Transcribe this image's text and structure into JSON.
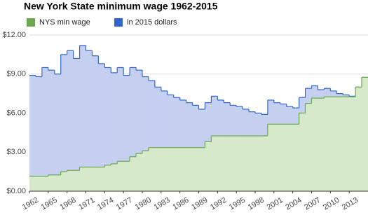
{
  "chart_data": {
    "type": "step-area",
    "title": "New York State minimum wage 1962-2015",
    "x": [
      1962,
      1963,
      1964,
      1965,
      1966,
      1967,
      1968,
      1969,
      1970,
      1971,
      1972,
      1973,
      1974,
      1975,
      1976,
      1977,
      1978,
      1979,
      1980,
      1981,
      1982,
      1983,
      1984,
      1985,
      1986,
      1987,
      1988,
      1989,
      1990,
      1991,
      1992,
      1993,
      1994,
      1995,
      1996,
      1997,
      1998,
      1999,
      2000,
      2001,
      2002,
      2003,
      2004,
      2005,
      2006,
      2007,
      2008,
      2009,
      2010,
      2011,
      2012,
      2013,
      2014,
      2015
    ],
    "series": [
      {
        "name": "NYS min wage",
        "color": "#6aa84f",
        "fill": "#d7e9cb",
        "values": [
          1.15,
          1.15,
          1.15,
          1.25,
          1.25,
          1.5,
          1.6,
          1.6,
          1.85,
          1.85,
          1.85,
          1.85,
          2.0,
          2.1,
          2.3,
          2.3,
          2.65,
          2.9,
          3.1,
          3.35,
          3.35,
          3.35,
          3.35,
          3.35,
          3.35,
          3.35,
          3.35,
          3.35,
          3.8,
          4.25,
          4.25,
          4.25,
          4.25,
          4.25,
          4.25,
          4.25,
          4.25,
          4.25,
          5.15,
          5.15,
          5.15,
          5.15,
          5.15,
          6.0,
          6.75,
          7.15,
          7.15,
          7.25,
          7.25,
          7.25,
          7.25,
          7.25,
          8.0,
          8.75
        ]
      },
      {
        "name": "in 2015 dollars",
        "color": "#3366cc",
        "fill": "#c5cff0",
        "values": [
          8.9,
          8.8,
          9.5,
          9.3,
          9.0,
          10.5,
          10.8,
          10.2,
          11.2,
          10.8,
          10.4,
          9.8,
          9.5,
          9.1,
          9.5,
          8.9,
          9.5,
          9.3,
          8.8,
          8.5,
          8.0,
          7.7,
          7.4,
          7.2,
          7.0,
          6.8,
          6.6,
          6.3,
          6.8,
          7.3,
          7.0,
          6.8,
          6.6,
          6.5,
          6.3,
          6.1,
          6.0,
          5.9,
          7.0,
          6.8,
          6.7,
          6.5,
          6.4,
          7.2,
          7.9,
          8.1,
          7.8,
          7.9,
          7.7,
          7.5,
          7.4,
          7.3,
          8.0,
          8.75
        ]
      }
    ],
    "xlim": [
      1962,
      2016
    ],
    "xticks": [
      1962,
      1965,
      1968,
      1971,
      1974,
      1977,
      1980,
      1983,
      1986,
      1989,
      1992,
      1995,
      1998,
      2001,
      2004,
      2007,
      2010,
      2013
    ],
    "ylim": [
      0,
      12
    ],
    "yticks": [
      {
        "value": 0,
        "label": "$0.00"
      },
      {
        "value": 3,
        "label": "$3.00"
      },
      {
        "value": 6,
        "label": "$6.00"
      },
      {
        "value": 9,
        "label": "$9.00"
      },
      {
        "value": 12,
        "label": "$12.00"
      }
    ],
    "grid": true
  }
}
